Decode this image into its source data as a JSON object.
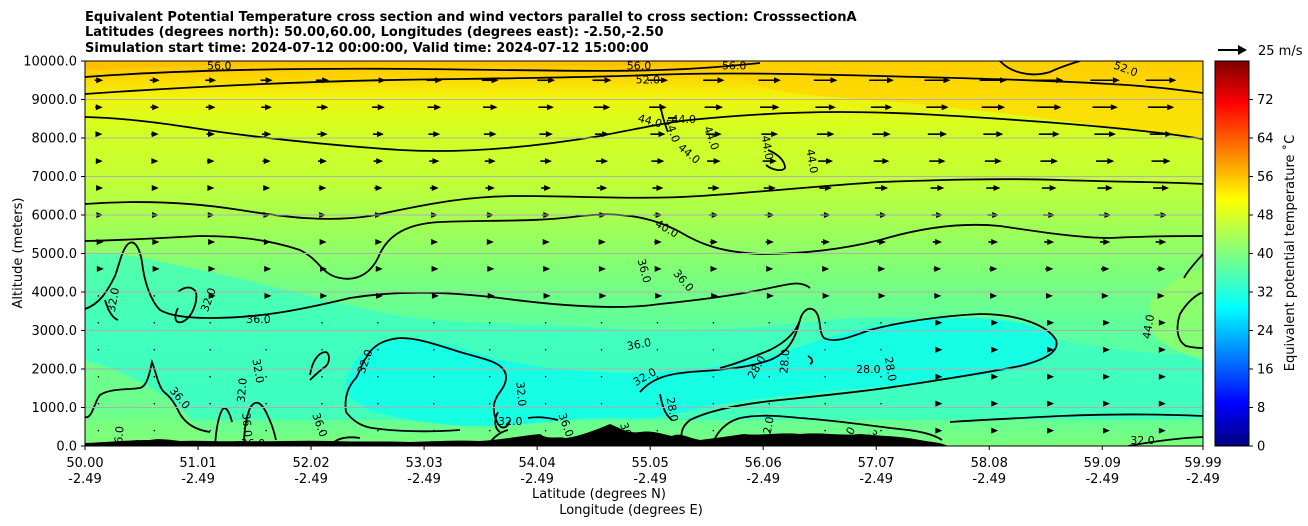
{
  "chart_data": {
    "type": "heatmap",
    "title_lines": [
      "Equivalent Potential Temperature cross section and wind vectors parallel to cross section: CrosssectionA",
      "Latitudes (degrees north): 50.00,60.00, Longitudes (degrees east): -2.50,-2.50",
      "Simulation start time: 2024-07-12 00:00:00, Valid time: 2024-07-12 15:00:00"
    ],
    "xlabel": "Latitude (degrees N)",
    "xlabel2": "Longitude (degrees E)",
    "ylabel": "Altitude (meters)",
    "xlim": [
      50.0,
      59.99
    ],
    "ylim": [
      0,
      10000
    ],
    "x_ticks": [
      {
        "lat": "50.00",
        "lon": "-2.49",
        "v": 50.0
      },
      {
        "lat": "51.01",
        "lon": "-2.49",
        "v": 51.01
      },
      {
        "lat": "52.02",
        "lon": "-2.49",
        "v": 52.02
      },
      {
        "lat": "53.03",
        "lon": "-2.49",
        "v": 53.03
      },
      {
        "lat": "54.04",
        "lon": "-2.49",
        "v": 54.04
      },
      {
        "lat": "55.05",
        "lon": "-2.49",
        "v": 55.05
      },
      {
        "lat": "56.06",
        "lon": "-2.49",
        "v": 56.06
      },
      {
        "lat": "57.07",
        "lon": "-2.49",
        "v": 57.07
      },
      {
        "lat": "58.08",
        "lon": "-2.49",
        "v": 58.08
      },
      {
        "lat": "59.09",
        "lon": "-2.49",
        "v": 59.09
      },
      {
        "lat": "59.99",
        "lon": "-2.49",
        "v": 59.99
      }
    ],
    "y_ticks": [
      {
        "label": "0.0",
        "v": 0
      },
      {
        "label": "1000.0",
        "v": 1000
      },
      {
        "label": "2000.0",
        "v": 2000
      },
      {
        "label": "3000.0",
        "v": 3000
      },
      {
        "label": "4000.0",
        "v": 4000
      },
      {
        "label": "5000.0",
        "v": 5000
      },
      {
        "label": "6000.0",
        "v": 6000
      },
      {
        "label": "7000.0",
        "v": 7000
      },
      {
        "label": "8000.0",
        "v": 8000
      },
      {
        "label": "9000.0",
        "v": 9000
      },
      {
        "label": "10000.0",
        "v": 10000
      }
    ],
    "grid": "horizontal",
    "colorbar": {
      "label": "Equivalent potential temperature ˚C",
      "range": [
        0,
        80
      ],
      "ticks": [
        "0",
        "8",
        "16",
        "24",
        "32",
        "40",
        "48",
        "56",
        "64",
        "72"
      ],
      "tick_values": [
        0,
        8,
        16,
        24,
        32,
        40,
        48,
        56,
        64,
        72
      ],
      "colormap": "jet"
    },
    "quiver_key": {
      "label": "25 m/s",
      "speed": 25
    },
    "contour_labels": [
      {
        "t": "56.0",
        "x": 51.2,
        "y": 9880,
        "rot": 0
      },
      {
        "t": "56.0",
        "x": 54.95,
        "y": 9880,
        "rot": 0
      },
      {
        "t": "56.0",
        "x": 55.8,
        "y": 9880,
        "rot": 0
      },
      {
        "t": "52.0",
        "x": 55.03,
        "y": 9520,
        "rot": 0
      },
      {
        "t": "52.0",
        "x": 59.3,
        "y": 9800,
        "rot": 20
      },
      {
        "t": "44.0",
        "x": 55.05,
        "y": 8450,
        "rot": 15
      },
      {
        "t": "44.0",
        "x": 55.25,
        "y": 8200,
        "rot": 70
      },
      {
        "t": "44.0",
        "x": 55.35,
        "y": 8500,
        "rot": 0
      },
      {
        "t": "44.0",
        "x": 55.6,
        "y": 8000,
        "rot": 70
      },
      {
        "t": "44.0",
        "x": 55.4,
        "y": 7600,
        "rot": 40
      },
      {
        "t": "44.0",
        "x": 56.1,
        "y": 7750,
        "rot": 80
      },
      {
        "t": "44.0",
        "x": 56.5,
        "y": 7400,
        "rot": 80
      },
      {
        "t": "40.0",
        "x": 55.2,
        "y": 5650,
        "rot": 30
      },
      {
        "t": "36.0",
        "x": 55.0,
        "y": 4550,
        "rot": 75
      },
      {
        "t": "36.0",
        "x": 55.35,
        "y": 4300,
        "rot": 50
      },
      {
        "t": "36.0",
        "x": 51.55,
        "y": 3300,
        "rot": 0
      },
      {
        "t": "36.0",
        "x": 54.95,
        "y": 2650,
        "rot": -10
      },
      {
        "t": "32.0",
        "x": 50.25,
        "y": 3800,
        "rot": -80
      },
      {
        "t": "32.0",
        "x": 51.1,
        "y": 3800,
        "rot": -70
      },
      {
        "t": "32.0",
        "x": 52.5,
        "y": 2200,
        "rot": -70
      },
      {
        "t": "32.0",
        "x": 51.55,
        "y": 1950,
        "rot": 80
      },
      {
        "t": "32.0",
        "x": 51.4,
        "y": 1450,
        "rot": -85
      },
      {
        "t": "32.0",
        "x": 55.0,
        "y": 1800,
        "rot": -30
      },
      {
        "t": "32.0",
        "x": 53.9,
        "y": 1350,
        "rot": 85
      },
      {
        "t": "32.0",
        "x": 53.8,
        "y": 650,
        "rot": 0
      },
      {
        "t": "32.0",
        "x": 59.45,
        "y": 150,
        "rot": 0
      },
      {
        "t": "36.0",
        "x": 50.85,
        "y": 1250,
        "rot": 50
      },
      {
        "t": "36.0",
        "x": 51.45,
        "y": 550,
        "rot": 85
      },
      {
        "t": "36.0",
        "x": 52.1,
        "y": 550,
        "rot": 70
      },
      {
        "t": "36.0",
        "x": 50.55,
        "y": 50,
        "rot": 0
      },
      {
        "t": "36.0",
        "x": 51.5,
        "y": 80,
        "rot": 0
      },
      {
        "t": "36.0",
        "x": 54.3,
        "y": 550,
        "rot": 70
      },
      {
        "t": "36.0",
        "x": 54.85,
        "y": 300,
        "rot": 70
      },
      {
        "t": "36.0",
        "x": 56.8,
        "y": 200,
        "rot": -60
      },
      {
        "t": "36.0",
        "x": 57.1,
        "y": 150,
        "rot": 45
      },
      {
        "t": "36.0",
        "x": 57.25,
        "y": 100,
        "rot": 0
      },
      {
        "t": "36.0",
        "x": 50.3,
        "y": 200,
        "rot": -85
      },
      {
        "t": "28.0",
        "x": 55.25,
        "y": 950,
        "rot": 80
      },
      {
        "t": "28.0",
        "x": 56.0,
        "y": 2050,
        "rot": -60
      },
      {
        "t": "28.0",
        "x": 56.25,
        "y": 2200,
        "rot": -85
      },
      {
        "t": "28.0",
        "x": 57.0,
        "y": 2000,
        "rot": 0
      },
      {
        "t": "28.0",
        "x": 57.2,
        "y": 2000,
        "rot": 80
      },
      {
        "t": "32.0",
        "x": 56.1,
        "y": 450,
        "rot": -80
      },
      {
        "t": "44.0",
        "x": 59.5,
        "y": 3100,
        "rot": -80
      }
    ]
  }
}
